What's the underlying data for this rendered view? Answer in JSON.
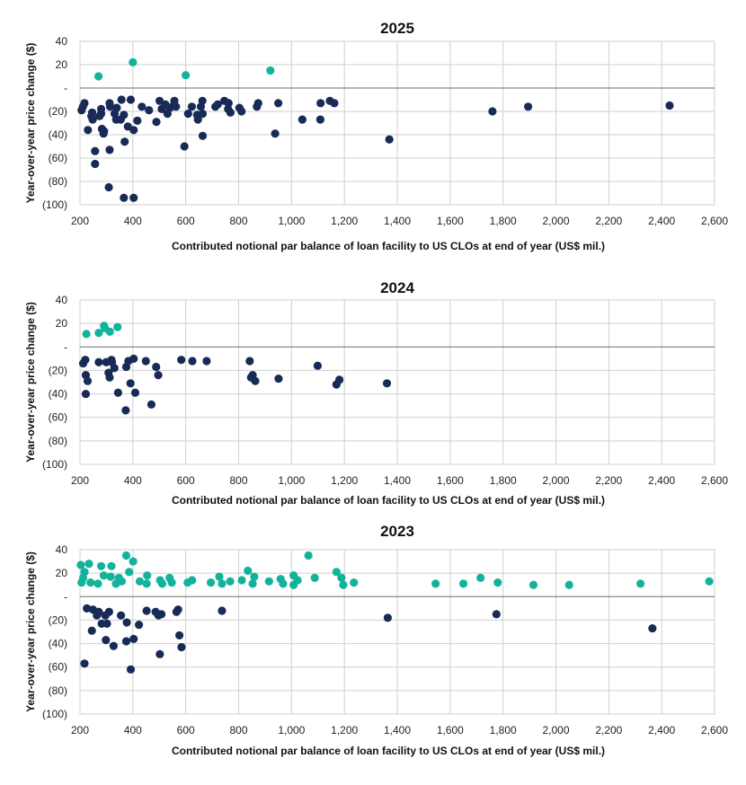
{
  "colors": {
    "negative": "#182a56",
    "positive": "#13b39b",
    "grid": "#cfcfcf",
    "zero_line": "#6b6b6b"
  },
  "chart_data": [
    {
      "type": "scatter",
      "title": "2025",
      "xlabel": "Contributed notional par balance of loan facility to US CLOs at end of year (US$ mil.)",
      "ylabel": "Year-over-year price change ($)",
      "xlim": [
        200,
        2600
      ],
      "ylim": [
        -100,
        40
      ],
      "x_ticks": [
        "200",
        "400",
        "600",
        "800",
        "1,000",
        "1,200",
        "1,400",
        "1,600",
        "1,800",
        "2,000",
        "2,200",
        "2,400",
        "2,600"
      ],
      "y_ticks": [
        "40",
        "20",
        "-",
        "(20)",
        "(40)",
        "(60)",
        "(80)",
        "(100)"
      ],
      "grid": true,
      "points": [
        [
          270,
          10
        ],
        [
          400,
          22
        ],
        [
          600,
          11
        ],
        [
          920,
          15
        ],
        [
          206,
          -19
        ],
        [
          217,
          -13
        ],
        [
          211,
          -16
        ],
        [
          246,
          -21
        ],
        [
          243,
          -24
        ],
        [
          248,
          -27
        ],
        [
          230,
          -36
        ],
        [
          257,
          -54
        ],
        [
          257,
          -65
        ],
        [
          280,
          -18
        ],
        [
          280,
          -22
        ],
        [
          274,
          -24
        ],
        [
          283,
          -35
        ],
        [
          291,
          -37
        ],
        [
          289,
          -39
        ],
        [
          309,
          -85
        ],
        [
          312,
          -13
        ],
        [
          314,
          -16
        ],
        [
          312,
          -53
        ],
        [
          331,
          -22
        ],
        [
          339,
          -17
        ],
        [
          337,
          -27
        ],
        [
          354,
          -27
        ],
        [
          357,
          -10
        ],
        [
          366,
          -23
        ],
        [
          381,
          -33
        ],
        [
          369,
          -46
        ],
        [
          366,
          -94
        ],
        [
          392,
          -10
        ],
        [
          403,
          -36
        ],
        [
          403,
          -94
        ],
        [
          417,
          -28
        ],
        [
          434,
          -16
        ],
        [
          461,
          -19
        ],
        [
          489,
          -29
        ],
        [
          501,
          -11
        ],
        [
          509,
          -18
        ],
        [
          523,
          -14
        ],
        [
          531,
          -22
        ],
        [
          540,
          -17
        ],
        [
          554,
          -15
        ],
        [
          557,
          -11
        ],
        [
          563,
          -16
        ],
        [
          595,
          -50
        ],
        [
          609,
          -22
        ],
        [
          623,
          -16
        ],
        [
          643,
          -23
        ],
        [
          646,
          -27
        ],
        [
          657,
          -16
        ],
        [
          663,
          -11
        ],
        [
          664,
          -22
        ],
        [
          664,
          -41
        ],
        [
          712,
          -16
        ],
        [
          721,
          -14
        ],
        [
          746,
          -11
        ],
        [
          762,
          -13
        ],
        [
          760,
          -18
        ],
        [
          769,
          -21
        ],
        [
          803,
          -17
        ],
        [
          811,
          -20
        ],
        [
          869,
          -16
        ],
        [
          874,
          -13
        ],
        [
          938,
          -39
        ],
        [
          950,
          -13
        ],
        [
          1041,
          -27
        ],
        [
          1110,
          -13
        ],
        [
          1109,
          -27
        ],
        [
          1145,
          -11
        ],
        [
          1162,
          -13
        ],
        [
          1370,
          -44
        ],
        [
          1760,
          -20
        ],
        [
          1895,
          -16
        ],
        [
          2430,
          -15
        ]
      ]
    },
    {
      "type": "scatter",
      "title": "2024",
      "xlabel": "Contributed notional par balance of loan facility to US CLOs at end of year (US$ mil.)",
      "ylabel": "Year-over-year price change ($)",
      "xlim": [
        200,
        2600
      ],
      "ylim": [
        -100,
        40
      ],
      "x_ticks": [
        "200",
        "400",
        "600",
        "800",
        "1,000",
        "1,200",
        "1,400",
        "1,600",
        "1,800",
        "2,000",
        "2,200",
        "2,400",
        "2,600"
      ],
      "y_ticks": [
        "40",
        "20",
        "-",
        "(20)",
        "(40)",
        "(60)",
        "(80)",
        "(100)"
      ],
      "grid": true,
      "points": [
        [
          224,
          11
        ],
        [
          271,
          12
        ],
        [
          291,
          18
        ],
        [
          294,
          16
        ],
        [
          313,
          13
        ],
        [
          342,
          17
        ],
        [
          212,
          -14
        ],
        [
          220,
          -11
        ],
        [
          222,
          -24
        ],
        [
          229,
          -29
        ],
        [
          222,
          -40
        ],
        [
          271,
          -13
        ],
        [
          299,
          -13
        ],
        [
          308,
          -22
        ],
        [
          312,
          -26
        ],
        [
          319,
          -11
        ],
        [
          321,
          -13
        ],
        [
          330,
          -18
        ],
        [
          344,
          -39
        ],
        [
          373,
          -54
        ],
        [
          375,
          -17
        ],
        [
          383,
          -12
        ],
        [
          391,
          -31
        ],
        [
          403,
          -10
        ],
        [
          409,
          -39
        ],
        [
          449,
          -12
        ],
        [
          470,
          -49
        ],
        [
          488,
          -17
        ],
        [
          496,
          -24
        ],
        [
          583,
          -11
        ],
        [
          625,
          -12
        ],
        [
          679,
          -12
        ],
        [
          842,
          -12
        ],
        [
          853,
          -24
        ],
        [
          847,
          -26
        ],
        [
          863,
          -29
        ],
        [
          951,
          -27
        ],
        [
          1099,
          -16
        ],
        [
          1170,
          -32
        ],
        [
          1181,
          -28
        ],
        [
          1361,
          -31
        ]
      ]
    },
    {
      "type": "scatter",
      "title": "2023",
      "xlabel": "Contributed notional par balance of loan facility to US CLOs at end of year (US$ mil.)",
      "ylabel": "Year-over-year price change ($)",
      "xlim": [
        200,
        2600
      ],
      "ylim": [
        -100,
        40
      ],
      "x_ticks": [
        "200",
        "400",
        "600",
        "800",
        "1,000",
        "1,200",
        "1,400",
        "1,600",
        "1,800",
        "2,000",
        "2,200",
        "2,400",
        "2,600"
      ],
      "y_ticks": [
        "40",
        "20",
        "-",
        "(20)",
        "(40)",
        "(60)",
        "(80)",
        "(100)"
      ],
      "grid": true,
      "points": [
        [
          203,
          27
        ],
        [
          234,
          28
        ],
        [
          217,
          21
        ],
        [
          212,
          16
        ],
        [
          206,
          12
        ],
        [
          280,
          26
        ],
        [
          319,
          26
        ],
        [
          375,
          35
        ],
        [
          401,
          30
        ],
        [
          386,
          21
        ],
        [
          316,
          17
        ],
        [
          290,
          18
        ],
        [
          347,
          16
        ],
        [
          358,
          13
        ],
        [
          336,
          11
        ],
        [
          240,
          12
        ],
        [
          268,
          11
        ],
        [
          426,
          13
        ],
        [
          454,
          18
        ],
        [
          452,
          11
        ],
        [
          503,
          14
        ],
        [
          511,
          11
        ],
        [
          539,
          16
        ],
        [
          547,
          12
        ],
        [
          607,
          12
        ],
        [
          624,
          14
        ],
        [
          695,
          12
        ],
        [
          727,
          17
        ],
        [
          737,
          11
        ],
        [
          768,
          13
        ],
        [
          812,
          14
        ],
        [
          835,
          22
        ],
        [
          859,
          17
        ],
        [
          853,
          11
        ],
        [
          915,
          13
        ],
        [
          959,
          15
        ],
        [
          968,
          11
        ],
        [
          1008,
          18
        ],
        [
          1023,
          14
        ],
        [
          1008,
          10
        ],
        [
          1064,
          35
        ],
        [
          1088,
          16
        ],
        [
          1170,
          21
        ],
        [
          1189,
          16
        ],
        [
          1196,
          10
        ],
        [
          1236,
          12
        ],
        [
          1545,
          11
        ],
        [
          1650,
          11
        ],
        [
          1715,
          16
        ],
        [
          1780,
          12
        ],
        [
          1915,
          10
        ],
        [
          2050,
          10
        ],
        [
          2320,
          11
        ],
        [
          2580,
          13
        ],
        [
          226,
          -10
        ],
        [
          249,
          -11
        ],
        [
          271,
          -13
        ],
        [
          264,
          -16
        ],
        [
          296,
          -16
        ],
        [
          310,
          -13
        ],
        [
          282,
          -23
        ],
        [
          302,
          -23
        ],
        [
          245,
          -29
        ],
        [
          298,
          -37
        ],
        [
          327,
          -42
        ],
        [
          355,
          -16
        ],
        [
          377,
          -22
        ],
        [
          375,
          -38
        ],
        [
          392,
          -62
        ],
        [
          403,
          -36
        ],
        [
          423,
          -24
        ],
        [
          217,
          -57
        ],
        [
          452,
          -12
        ],
        [
          486,
          -13
        ],
        [
          497,
          -16
        ],
        [
          508,
          -15
        ],
        [
          502,
          -49
        ],
        [
          565,
          -13
        ],
        [
          571,
          -11
        ],
        [
          576,
          -33
        ],
        [
          584,
          -43
        ],
        [
          737,
          -12
        ],
        [
          1364,
          -18
        ],
        [
          1775,
          -15
        ],
        [
          2365,
          -27
        ]
      ]
    }
  ]
}
